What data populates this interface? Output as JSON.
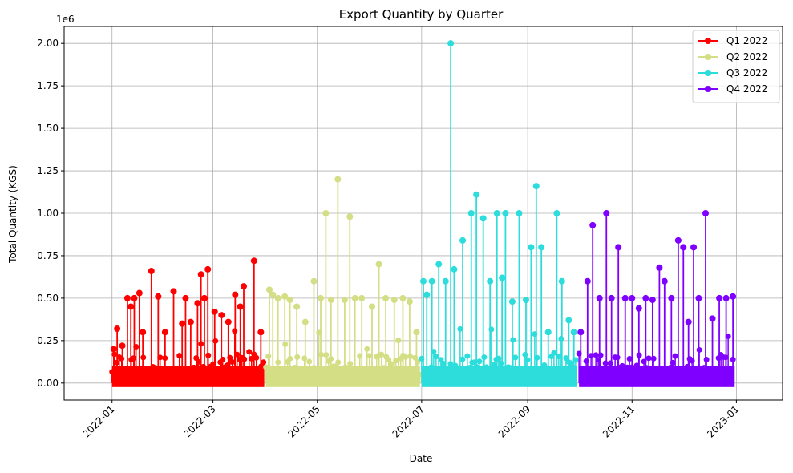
{
  "chart_data": {
    "type": "line",
    "title": "Export Quantity by Quarter",
    "xlabel": "Date",
    "ylabel": "Total Quantity (KGS)",
    "y_multiplier_label": "1e6",
    "x_range": [
      "2021-12-04",
      "2023-01-28"
    ],
    "ylim": [
      -100000,
      2100000
    ],
    "x_ticks": [
      "2022-01",
      "2022-03",
      "2022-05",
      "2022-07",
      "2022-09",
      "2022-11",
      "2023-01"
    ],
    "y_ticks": [
      {
        "value": 0,
        "label": "0.00"
      },
      {
        "value": 250000,
        "label": "0.25"
      },
      {
        "value": 500000,
        "label": "0.50"
      },
      {
        "value": 750000,
        "label": "0.75"
      },
      {
        "value": 1000000,
        "label": "1.00"
      },
      {
        "value": 1250000,
        "label": "1.25"
      },
      {
        "value": 1500000,
        "label": "1.50"
      },
      {
        "value": 1750000,
        "label": "1.75"
      },
      {
        "value": 2000000,
        "label": "2.00"
      }
    ],
    "grid": true,
    "legend_position": "top-right",
    "series": [
      {
        "name": "Q1 2022",
        "color": "#ff0000",
        "start": "2022-01-01",
        "end": "2022-03-31",
        "x": [
          "2022-01-02",
          "2022-01-04",
          "2022-01-07",
          "2022-01-10",
          "2022-01-12",
          "2022-01-14",
          "2022-01-17",
          "2022-01-19",
          "2022-01-24",
          "2022-01-28",
          "2022-02-01",
          "2022-02-06",
          "2022-02-11",
          "2022-02-13",
          "2022-02-16",
          "2022-02-20",
          "2022-02-22",
          "2022-02-24",
          "2022-02-26",
          "2022-03-02",
          "2022-03-06",
          "2022-03-10",
          "2022-03-14",
          "2022-03-17",
          "2022-03-19",
          "2022-03-25",
          "2022-03-29"
        ],
        "y": [
          200000,
          320000,
          220000,
          500000,
          450000,
          500000,
          530000,
          300000,
          660000,
          510000,
          300000,
          540000,
          350000,
          500000,
          360000,
          470000,
          640000,
          500000,
          670000,
          420000,
          400000,
          360000,
          520000,
          450000,
          570000,
          720000,
          300000
        ]
      },
      {
        "name": "Q2 2022",
        "color": "#d4de84",
        "start": "2022-04-01",
        "end": "2022-06-30",
        "x": [
          "2022-04-03",
          "2022-04-05",
          "2022-04-08",
          "2022-04-12",
          "2022-04-15",
          "2022-04-19",
          "2022-04-24",
          "2022-04-29",
          "2022-05-03",
          "2022-05-06",
          "2022-05-09",
          "2022-05-13",
          "2022-05-17",
          "2022-05-20",
          "2022-05-23",
          "2022-05-27",
          "2022-06-02",
          "2022-06-06",
          "2022-06-10",
          "2022-06-15",
          "2022-06-20",
          "2022-06-24",
          "2022-06-28"
        ],
        "y": [
          550000,
          520000,
          500000,
          510000,
          490000,
          450000,
          360000,
          600000,
          500000,
          1000000,
          490000,
          1200000,
          490000,
          980000,
          500000,
          500000,
          450000,
          700000,
          500000,
          490000,
          500000,
          480000,
          300000
        ]
      },
      {
        "name": "Q3 2022",
        "color": "#2ddddb",
        "start": "2022-07-01",
        "end": "2022-09-30",
        "x": [
          "2022-07-02",
          "2022-07-04",
          "2022-07-07",
          "2022-07-11",
          "2022-07-15",
          "2022-07-18",
          "2022-07-20",
          "2022-07-25",
          "2022-07-30",
          "2022-08-02",
          "2022-08-06",
          "2022-08-10",
          "2022-08-14",
          "2022-08-17",
          "2022-08-19",
          "2022-08-23",
          "2022-08-27",
          "2022-08-31",
          "2022-09-03",
          "2022-09-06",
          "2022-09-09",
          "2022-09-13",
          "2022-09-18",
          "2022-09-21",
          "2022-09-25",
          "2022-09-28"
        ],
        "y": [
          600000,
          520000,
          600000,
          700000,
          600000,
          2000000,
          670000,
          840000,
          1000000,
          1110000,
          970000,
          600000,
          1000000,
          620000,
          1000000,
          480000,
          1000000,
          490000,
          800000,
          1160000,
          800000,
          300000,
          1000000,
          600000,
          370000,
          300000
        ]
      },
      {
        "name": "Q4 2022",
        "color": "#8000ff",
        "start": "2022-10-01",
        "end": "2022-12-31",
        "x": [
          "2022-10-02",
          "2022-10-06",
          "2022-10-09",
          "2022-10-13",
          "2022-10-17",
          "2022-10-20",
          "2022-10-24",
          "2022-10-28",
          "2022-11-01",
          "2022-11-05",
          "2022-11-09",
          "2022-11-13",
          "2022-11-17",
          "2022-11-20",
          "2022-11-24",
          "2022-11-28",
          "2022-12-01",
          "2022-12-04",
          "2022-12-07",
          "2022-12-10",
          "2022-12-14",
          "2022-12-18",
          "2022-12-22",
          "2022-12-26",
          "2022-12-30"
        ],
        "y": [
          300000,
          600000,
          930000,
          500000,
          1000000,
          500000,
          800000,
          500000,
          500000,
          440000,
          500000,
          490000,
          680000,
          600000,
          500000,
          840000,
          800000,
          360000,
          800000,
          500000,
          1000000,
          380000,
          500000,
          500000,
          510000
        ]
      }
    ]
  }
}
